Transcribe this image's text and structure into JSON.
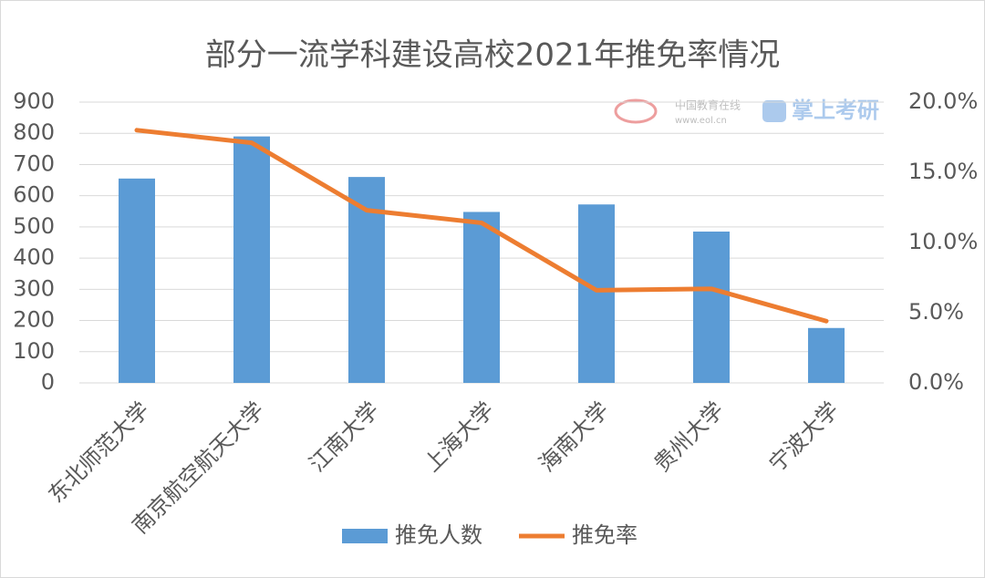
{
  "chart_data": {
    "type": "bar-line",
    "title": "部分一流学科建设高校2021年推免率情况",
    "categories": [
      "东北师范大学",
      "南京航空航天大学",
      "江南大学",
      "上海大学",
      "海南大学",
      "贵州大学",
      "宁波大学"
    ],
    "series": [
      {
        "name": "推免人数",
        "type": "bar",
        "color": "#5b9bd5",
        "values": [
          655,
          790,
          660,
          548,
          572,
          485,
          176
        ]
      },
      {
        "name": "推免率",
        "type": "line",
        "axis": "y2",
        "color": "#ed7d31",
        "values": [
          18.0,
          17.1,
          12.3,
          11.4,
          6.6,
          6.7,
          4.4
        ]
      }
    ],
    "ylim": [
      0,
      900
    ],
    "yticks": [
      0,
      100,
      200,
      300,
      400,
      500,
      600,
      700,
      800,
      900
    ],
    "y2lim": [
      0,
      20
    ],
    "y2ticks": [
      {
        "value": 0,
        "label": "0.0%"
      },
      {
        "value": 5,
        "label": "5.0%"
      },
      {
        "value": 10,
        "label": "10.0%"
      },
      {
        "value": 15,
        "label": "15.0%"
      },
      {
        "value": 20,
        "label": "20.0%"
      }
    ],
    "grid": true,
    "legend": "bottom",
    "watermark": [
      "中国教育在线",
      "www.eol.cn",
      "掌上考研"
    ]
  }
}
